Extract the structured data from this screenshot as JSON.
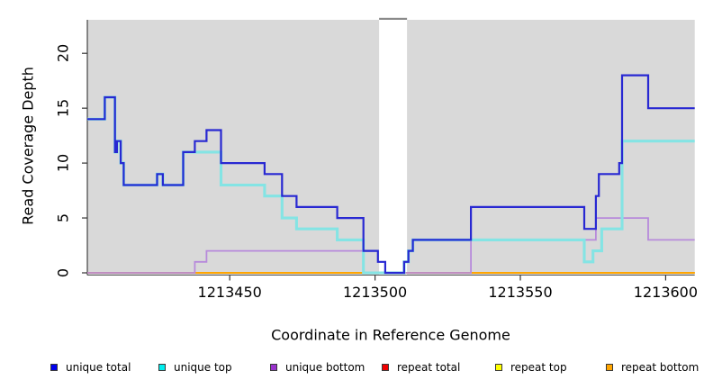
{
  "chart_data": {
    "type": "line",
    "subtype": "step",
    "title": "",
    "xlabel": "Coordinate in Reference Genome",
    "ylabel": "Read Coverage Depth",
    "xlim": [
      1213401,
      1213610
    ],
    "ylim": [
      0,
      23
    ],
    "x_ticks": [
      "1213450",
      "1213500",
      "1213550",
      "1213600"
    ],
    "x_tick_values": [
      1213450,
      1213500,
      1213550,
      1213600
    ],
    "y_ticks": [
      "0",
      "5",
      "10",
      "15",
      "20"
    ],
    "y_tick_values": [
      0,
      5,
      10,
      15,
      20
    ],
    "grid": "off",
    "plot_background": "#d9d9d9",
    "mask_region": {
      "from": 1213501.4,
      "to": 1213511,
      "color": "#ffffff",
      "cap_color": "#8a8a8a"
    },
    "series": [
      {
        "name": "repeat total",
        "swatch_color": "#EE0000",
        "line_color": "#dd2222",
        "line_width": 1.6,
        "points": [
          [
            1213401,
            0
          ]
        ]
      },
      {
        "name": "repeat top",
        "swatch_color": "#FFFF00",
        "line_color": "#f5e400",
        "line_width": 1.4,
        "points": [
          [
            1213401,
            0
          ]
        ]
      },
      {
        "name": "repeat bottom",
        "swatch_color": "#FFA500",
        "line_color": "#ffa500",
        "line_width": 2,
        "points": [
          [
            1213401,
            0
          ]
        ]
      },
      {
        "name": "unique bottom",
        "swatch_color": "#9932CC",
        "line_color": "#b78adb",
        "line_width": 1.8,
        "points": [
          [
            1213401,
            0
          ],
          [
            1213438,
            1
          ],
          [
            1213442,
            2
          ],
          [
            1213496,
            0
          ],
          [
            1213533,
            3
          ],
          [
            1213576,
            5
          ],
          [
            1213594,
            3
          ]
        ]
      },
      {
        "name": "unique top",
        "swatch_color": "#00EEEE",
        "line_color": "#84e4e4",
        "line_width": 3.1,
        "points": [
          [
            1213401,
            14
          ],
          [
            1213407,
            16
          ],
          [
            1213410.5,
            11
          ],
          [
            1213411.2,
            12
          ],
          [
            1213412.5,
            10
          ],
          [
            1213413.5,
            8
          ],
          [
            1213425,
            9
          ],
          [
            1213427,
            8
          ],
          [
            1213434,
            11
          ],
          [
            1213447,
            8
          ],
          [
            1213462,
            7
          ],
          [
            1213468,
            5
          ],
          [
            1213473,
            4
          ],
          [
            1213487,
            3
          ],
          [
            1213496,
            0
          ],
          [
            1213510,
            1
          ],
          [
            1213511.5,
            2
          ],
          [
            1213513,
            3
          ],
          [
            1213572,
            1
          ],
          [
            1213575,
            2
          ],
          [
            1213578,
            4
          ],
          [
            1213585,
            12
          ]
        ]
      },
      {
        "name": "unique total",
        "swatch_color": "#0000EE",
        "line_color": "#2828d2",
        "line_width": 2.2,
        "points": [
          [
            1213401,
            14
          ],
          [
            1213407,
            16
          ],
          [
            1213410.5,
            11
          ],
          [
            1213411.2,
            12
          ],
          [
            1213412.5,
            10
          ],
          [
            1213413.5,
            8
          ],
          [
            1213425,
            9
          ],
          [
            1213427,
            8
          ],
          [
            1213434,
            11
          ],
          [
            1213438,
            12
          ],
          [
            1213442,
            13
          ],
          [
            1213447,
            10
          ],
          [
            1213462,
            9
          ],
          [
            1213468,
            7
          ],
          [
            1213473,
            6
          ],
          [
            1213487,
            5
          ],
          [
            1213496,
            2
          ],
          [
            1213501,
            1
          ],
          [
            1213503.5,
            0
          ],
          [
            1213510,
            1
          ],
          [
            1213511.5,
            2
          ],
          [
            1213513,
            3
          ],
          [
            1213533,
            6
          ],
          [
            1213572,
            4
          ],
          [
            1213576,
            7
          ],
          [
            1213577,
            9
          ],
          [
            1213584,
            10
          ],
          [
            1213585,
            18
          ],
          [
            1213594,
            15
          ]
        ]
      }
    ]
  },
  "legend": {
    "items": [
      {
        "label": "unique total",
        "color": "#0000EE"
      },
      {
        "label": "unique top",
        "color": "#00EEEE"
      },
      {
        "label": "unique bottom",
        "color": "#9932CC"
      },
      {
        "label": "repeat total",
        "color": "#EE0000"
      },
      {
        "label": "repeat top",
        "color": "#FFFF00"
      },
      {
        "label": "repeat bottom",
        "color": "#FFA500"
      }
    ]
  }
}
